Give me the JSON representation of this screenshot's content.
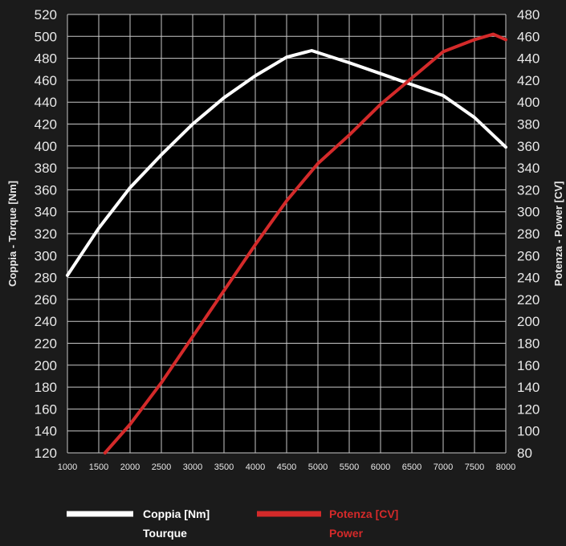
{
  "chart_data": {
    "type": "line",
    "x": [
      1000,
      1500,
      2000,
      2500,
      3000,
      3500,
      4000,
      4500,
      4900,
      5000,
      5500,
      6000,
      6500,
      7000,
      7500,
      8000
    ],
    "xlim": [
      1000,
      8000
    ],
    "x_ticks": [
      1000,
      1500,
      2000,
      2500,
      3000,
      3500,
      4000,
      4500,
      5000,
      5500,
      6000,
      6500,
      7000,
      7500,
      8000
    ],
    "y_left": {
      "label": "Coppia - Torque [Nm]",
      "lim": [
        120,
        520
      ],
      "ticks": [
        120,
        140,
        160,
        180,
        200,
        220,
        240,
        260,
        280,
        300,
        320,
        340,
        360,
        380,
        400,
        420,
        440,
        460,
        480,
        500,
        520
      ]
    },
    "y_right": {
      "label": "Potenza - Power [CV]",
      "lim": [
        80,
        480
      ],
      "ticks": [
        80,
        100,
        120,
        140,
        160,
        180,
        200,
        220,
        240,
        260,
        280,
        300,
        320,
        340,
        360,
        380,
        400,
        420,
        440,
        460,
        480
      ]
    },
    "grid": true,
    "legend_position": "bottom",
    "series": [
      {
        "legend_line1": "Coppia [Nm]",
        "legend_line2": "Tourque",
        "axis": "left",
        "color": "#ffffff",
        "points": [
          [
            1000,
            282
          ],
          [
            1500,
            325
          ],
          [
            2000,
            362
          ],
          [
            2500,
            392
          ],
          [
            3000,
            420
          ],
          [
            3500,
            444
          ],
          [
            4000,
            464
          ],
          [
            4500,
            481
          ],
          [
            4900,
            487
          ],
          [
            5500,
            476
          ],
          [
            6000,
            466
          ],
          [
            6500,
            456
          ],
          [
            7000,
            446
          ],
          [
            7500,
            426
          ],
          [
            8000,
            399
          ]
        ]
      },
      {
        "legend_line1": "Potenza [CV]",
        "legend_line2": "Power",
        "axis": "right",
        "color": "#d42a2a",
        "points": [
          [
            1600,
            80
          ],
          [
            2000,
            106
          ],
          [
            2500,
            144
          ],
          [
            3000,
            186
          ],
          [
            3500,
            228
          ],
          [
            4000,
            270
          ],
          [
            4500,
            310
          ],
          [
            5000,
            344
          ],
          [
            5500,
            370
          ],
          [
            6000,
            398
          ],
          [
            6500,
            422
          ],
          [
            7000,
            446
          ],
          [
            7500,
            457
          ],
          [
            7800,
            462
          ],
          [
            8000,
            457
          ]
        ]
      }
    ]
  }
}
